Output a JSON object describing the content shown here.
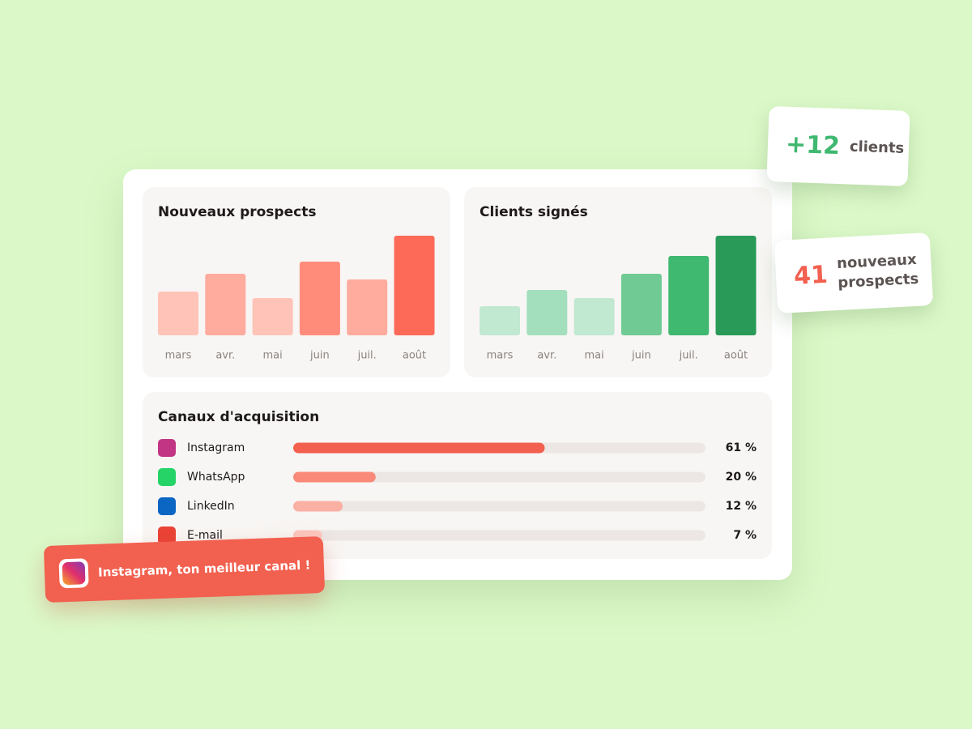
{
  "chart_data": [
    {
      "type": "bar",
      "title": "Nouveaux prospects",
      "categories": [
        "mars",
        "avr.",
        "mai",
        "juin",
        "juil.",
        "août"
      ],
      "values": [
        54,
        76,
        46,
        91,
        69,
        123
      ],
      "ylim": [
        0,
        130
      ],
      "colors": [
        "#ffc3b8",
        "#ffab9e",
        "#ffc3b8",
        "#ff8b7b",
        "#ffab9e",
        "#fd6a58"
      ]
    },
    {
      "type": "bar",
      "title": "Clients signés",
      "categories": [
        "mars",
        "avr.",
        "mai",
        "juin",
        "juil.",
        "août"
      ],
      "values": [
        36,
        56,
        46,
        76,
        98,
        123
      ],
      "ylim": [
        0,
        130
      ],
      "colors": [
        "#c1e8d1",
        "#a3dfbc",
        "#c1e8d1",
        "#6fcb93",
        "#3fb870",
        "#2a9a58"
      ]
    },
    {
      "type": "hbar",
      "title": "Canaux d'acquisition",
      "categories": [
        "Instagram",
        "WhatsApp",
        "LinkedIn",
        "E-mail"
      ],
      "values": [
        61,
        20,
        12,
        7
      ],
      "value_labels": [
        "61 %",
        "20 %",
        "12 %",
        "7 %"
      ],
      "xlim": [
        0,
        100
      ],
      "colors": [
        "#f4604f",
        "#f98a79",
        "#fbb0a4",
        "#fcc8bf"
      ]
    }
  ],
  "badges": [
    {
      "value": "+12",
      "label": "clients"
    },
    {
      "value": "41",
      "label": "nouveaux prospects"
    }
  ],
  "callout": "Instagram, ton meilleur canal !"
}
